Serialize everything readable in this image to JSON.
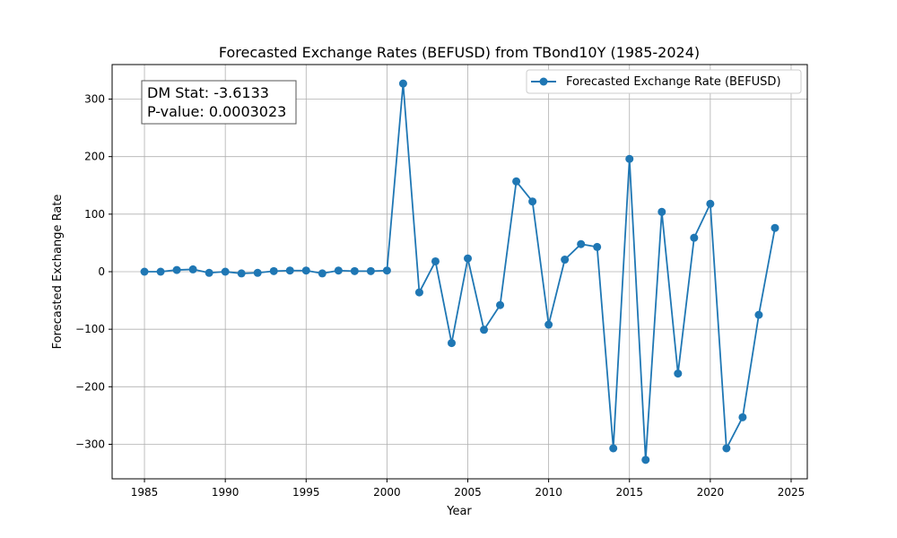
{
  "chart_data": {
    "type": "line",
    "title": "Forecasted Exchange Rates (BEFUSD) from TBond10Y (1985-2024)",
    "xlabel": "Year",
    "ylabel": "Forecasted Exchange Rate",
    "xlim": [
      1983,
      2026
    ],
    "ylim": [
      -360,
      360
    ],
    "xticks": [
      1985,
      1990,
      1995,
      2000,
      2005,
      2010,
      2015,
      2020,
      2025
    ],
    "yticks": [
      -300,
      -200,
      -100,
      0,
      100,
      200,
      300
    ],
    "ytick_labels": [
      "−300",
      "−200",
      "−100",
      "0",
      "100",
      "200",
      "300"
    ],
    "grid": true,
    "legend_position": "top-right",
    "series": [
      {
        "name": "Forecasted Exchange Rate (BEFUSD)",
        "color": "#1f77b4",
        "marker": "circle",
        "x": [
          1985,
          1986,
          1987,
          1988,
          1989,
          1990,
          1991,
          1992,
          1993,
          1994,
          1995,
          1996,
          1997,
          1998,
          1999,
          2000,
          2001,
          2002,
          2003,
          2004,
          2005,
          2006,
          2007,
          2008,
          2009,
          2010,
          2011,
          2012,
          2013,
          2014,
          2015,
          2016,
          2017,
          2018,
          2019,
          2020,
          2021,
          2022,
          2023,
          2024
        ],
        "y": [
          0,
          0,
          3,
          4,
          -2,
          0,
          -3,
          -2,
          1,
          2,
          2,
          -3,
          2,
          1,
          1,
          2,
          327,
          -36,
          18,
          -124,
          23,
          -101,
          -58,
          157,
          122,
          -92,
          21,
          48,
          43,
          -307,
          196,
          -327,
          104,
          -177,
          59,
          118,
          -307,
          -253,
          -75,
          76
        ]
      }
    ],
    "annotation": {
      "line1": "DM Stat: -3.6133",
      "line2": "P-value: 0.0003023"
    }
  }
}
